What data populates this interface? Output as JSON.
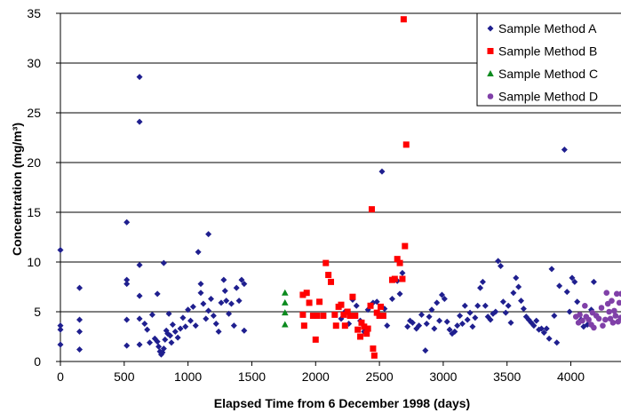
{
  "chart_data": {
    "type": "scatter",
    "title": "",
    "xlabel": "Elapsed Time from 6 December 1998 (days)",
    "ylabel": "Concentration (mg/m³)",
    "xlim": [
      0,
      4400
    ],
    "ylim": [
      0,
      35
    ],
    "x_ticks": [
      0,
      500,
      1000,
      1500,
      2000,
      2500,
      3000,
      3500,
      4000
    ],
    "y_ticks": [
      0,
      5,
      10,
      15,
      20,
      25,
      30,
      35
    ],
    "grid": "horizontal",
    "legend_position": "top-right",
    "series": [
      {
        "name": "Sample Method A",
        "marker": "diamond",
        "color": "#1f1f8f",
        "points": [
          [
            0,
            11.2
          ],
          [
            0,
            3.6
          ],
          [
            0,
            3.2
          ],
          [
            0,
            1.7
          ],
          [
            150,
            7.4
          ],
          [
            150,
            4.2
          ],
          [
            150,
            3.0
          ],
          [
            150,
            1.2
          ],
          [
            520,
            14.0
          ],
          [
            520,
            8.2
          ],
          [
            520,
            7.8
          ],
          [
            520,
            4.2
          ],
          [
            520,
            1.6
          ],
          [
            620,
            28.6
          ],
          [
            620,
            24.1
          ],
          [
            620,
            9.7
          ],
          [
            620,
            6.6
          ],
          [
            620,
            4.3
          ],
          [
            620,
            1.7
          ],
          [
            660,
            3.8
          ],
          [
            680,
            3.2
          ],
          [
            700,
            1.9
          ],
          [
            720,
            4.7
          ],
          [
            740,
            2.3
          ],
          [
            760,
            2.0
          ],
          [
            770,
            1.5
          ],
          [
            780,
            1.0
          ],
          [
            790,
            0.7
          ],
          [
            800,
            0.9
          ],
          [
            810,
            1.3
          ],
          [
            820,
            2.2
          ],
          [
            830,
            3.1
          ],
          [
            840,
            2.8
          ],
          [
            850,
            4.8
          ],
          [
            860,
            2.6
          ],
          [
            870,
            1.9
          ],
          [
            880,
            3.7
          ],
          [
            900,
            3.0
          ],
          [
            920,
            2.4
          ],
          [
            940,
            3.3
          ],
          [
            960,
            4.4
          ],
          [
            980,
            3.5
          ],
          [
            1000,
            5.2
          ],
          [
            1020,
            4.1
          ],
          [
            1040,
            5.5
          ],
          [
            1060,
            3.6
          ],
          [
            1080,
            11.0
          ],
          [
            1100,
            7.8
          ],
          [
            1100,
            6.9
          ],
          [
            1120,
            5.8
          ],
          [
            1140,
            4.3
          ],
          [
            1160,
            5.1
          ],
          [
            1160,
            12.8
          ],
          [
            1180,
            6.3
          ],
          [
            1200,
            4.6
          ],
          [
            1220,
            3.8
          ],
          [
            1240,
            3.0
          ],
          [
            1260,
            5.9
          ],
          [
            1280,
            8.2
          ],
          [
            1290,
            7.1
          ],
          [
            1300,
            6.1
          ],
          [
            1320,
            4.8
          ],
          [
            1340,
            5.8
          ],
          [
            1360,
            3.6
          ],
          [
            1380,
            7.4
          ],
          [
            1400,
            6.1
          ],
          [
            1420,
            8.2
          ],
          [
            1440,
            3.1
          ],
          [
            1440,
            7.8
          ],
          [
            810,
            9.9
          ],
          [
            760,
            6.8
          ],
          [
            2200,
            4.3
          ],
          [
            2230,
            5.0
          ],
          [
            2260,
            3.8
          ],
          [
            2290,
            6.2
          ],
          [
            2320,
            5.6
          ],
          [
            2350,
            4.1
          ],
          [
            2380,
            3.0
          ],
          [
            2410,
            5.2
          ],
          [
            2450,
            5.9
          ],
          [
            2480,
            6.0
          ],
          [
            2520,
            19.1
          ],
          [
            2540,
            5.3
          ],
          [
            2560,
            3.6
          ],
          [
            2600,
            6.3
          ],
          [
            2640,
            8.1
          ],
          [
            2660,
            6.8
          ],
          [
            2680,
            8.9
          ],
          [
            2720,
            3.5
          ],
          [
            2740,
            4.1
          ],
          [
            2760,
            3.9
          ],
          [
            2790,
            3.3
          ],
          [
            2810,
            3.6
          ],
          [
            2830,
            4.7
          ],
          [
            2860,
            1.1
          ],
          [
            2870,
            3.8
          ],
          [
            2890,
            4.5
          ],
          [
            2910,
            5.2
          ],
          [
            2930,
            3.3
          ],
          [
            2950,
            5.9
          ],
          [
            2970,
            4.1
          ],
          [
            2990,
            6.7
          ],
          [
            3010,
            6.3
          ],
          [
            3030,
            4.0
          ],
          [
            3050,
            3.2
          ],
          [
            3070,
            2.8
          ],
          [
            3090,
            3.0
          ],
          [
            3110,
            3.6
          ],
          [
            3130,
            4.6
          ],
          [
            3150,
            3.8
          ],
          [
            3170,
            5.6
          ],
          [
            3190,
            4.2
          ],
          [
            3210,
            4.9
          ],
          [
            3230,
            3.5
          ],
          [
            3250,
            4.4
          ],
          [
            3270,
            5.6
          ],
          [
            3290,
            7.4
          ],
          [
            3310,
            8.0
          ],
          [
            3330,
            5.6
          ],
          [
            3350,
            4.5
          ],
          [
            3370,
            4.2
          ],
          [
            3390,
            4.8
          ],
          [
            3410,
            5.0
          ],
          [
            3430,
            10.1
          ],
          [
            3450,
            9.6
          ],
          [
            3470,
            6.0
          ],
          [
            3490,
            4.9
          ],
          [
            3510,
            5.6
          ],
          [
            3530,
            3.9
          ],
          [
            3550,
            6.9
          ],
          [
            3570,
            8.4
          ],
          [
            3590,
            7.5
          ],
          [
            3610,
            6.1
          ],
          [
            3630,
            5.3
          ],
          [
            3650,
            4.5
          ],
          [
            3670,
            4.2
          ],
          [
            3690,
            3.9
          ],
          [
            3710,
            3.6
          ],
          [
            3730,
            4.1
          ],
          [
            3750,
            3.2
          ],
          [
            3770,
            3.3
          ],
          [
            3790,
            2.9
          ],
          [
            3810,
            3.3
          ],
          [
            3830,
            2.3
          ],
          [
            3850,
            9.3
          ],
          [
            3870,
            4.6
          ],
          [
            3890,
            1.9
          ],
          [
            3910,
            7.6
          ],
          [
            3950,
            21.3
          ],
          [
            3970,
            7.0
          ],
          [
            3990,
            5.0
          ],
          [
            4010,
            8.4
          ],
          [
            4030,
            8.0
          ],
          [
            4050,
            6.0
          ],
          [
            4080,
            4.2
          ],
          [
            4100,
            3.5
          ],
          [
            4130,
            3.7
          ],
          [
            4160,
            5.2
          ],
          [
            4180,
            8.0
          ]
        ]
      },
      {
        "name": "Sample Method B",
        "marker": "square",
        "color": "#ff0000",
        "points": [
          [
            1900,
            6.7
          ],
          [
            1900,
            4.7
          ],
          [
            1910,
            3.6
          ],
          [
            1930,
            6.9
          ],
          [
            1950,
            5.9
          ],
          [
            1980,
            4.6
          ],
          [
            2000,
            2.2
          ],
          [
            2010,
            4.6
          ],
          [
            2030,
            6.0
          ],
          [
            2060,
            4.6
          ],
          [
            2080,
            9.9
          ],
          [
            2100,
            8.7
          ],
          [
            2120,
            8.0
          ],
          [
            2150,
            4.7
          ],
          [
            2160,
            3.6
          ],
          [
            2180,
            5.5
          ],
          [
            2200,
            5.7
          ],
          [
            2220,
            4.7
          ],
          [
            2230,
            3.6
          ],
          [
            2250,
            5.0
          ],
          [
            2270,
            4.6
          ],
          [
            2290,
            6.5
          ],
          [
            2310,
            4.6
          ],
          [
            2330,
            3.2
          ],
          [
            2350,
            2.5
          ],
          [
            2360,
            3.9
          ],
          [
            2380,
            3.5
          ],
          [
            2400,
            2.8
          ],
          [
            2410,
            3.3
          ],
          [
            2430,
            5.6
          ],
          [
            2440,
            15.3
          ],
          [
            2450,
            1.3
          ],
          [
            2460,
            0.6
          ],
          [
            2480,
            4.9
          ],
          [
            2500,
            4.6
          ],
          [
            2510,
            5.5
          ],
          [
            2530,
            4.6
          ],
          [
            2600,
            8.2
          ],
          [
            2620,
            8.3
          ],
          [
            2640,
            10.3
          ],
          [
            2660,
            9.9
          ],
          [
            2680,
            8.3
          ],
          [
            2690,
            34.4
          ],
          [
            2700,
            11.6
          ],
          [
            2710,
            21.8
          ]
        ]
      },
      {
        "name": "Sample Method C",
        "marker": "triangle",
        "color": "#0b8a1e",
        "points": [
          [
            1760,
            6.9
          ],
          [
            1760,
            5.9
          ],
          [
            1760,
            4.9
          ],
          [
            1760,
            3.7
          ]
        ]
      },
      {
        "name": "Sample Method D",
        "marker": "circle",
        "color": "#8040a8",
        "points": [
          [
            4040,
            4.5
          ],
          [
            4060,
            3.9
          ],
          [
            4070,
            4.7
          ],
          [
            4090,
            4.1
          ],
          [
            4110,
            5.6
          ],
          [
            4120,
            4.5
          ],
          [
            4140,
            4.2
          ],
          [
            4160,
            3.7
          ],
          [
            4170,
            4.9
          ],
          [
            4180,
            3.4
          ],
          [
            4200,
            4.6
          ],
          [
            4220,
            4.3
          ],
          [
            4240,
            5.4
          ],
          [
            4250,
            3.6
          ],
          [
            4270,
            4.2
          ],
          [
            4280,
            6.9
          ],
          [
            4290,
            5.8
          ],
          [
            4300,
            5.0
          ],
          [
            4310,
            4.3
          ],
          [
            4320,
            6.1
          ],
          [
            4330,
            3.9
          ],
          [
            4340,
            5.1
          ],
          [
            4350,
            4.6
          ],
          [
            4360,
            6.8
          ],
          [
            4370,
            4.0
          ],
          [
            4380,
            5.9
          ],
          [
            4390,
            4.4
          ],
          [
            4395,
            6.8
          ]
        ]
      }
    ]
  }
}
